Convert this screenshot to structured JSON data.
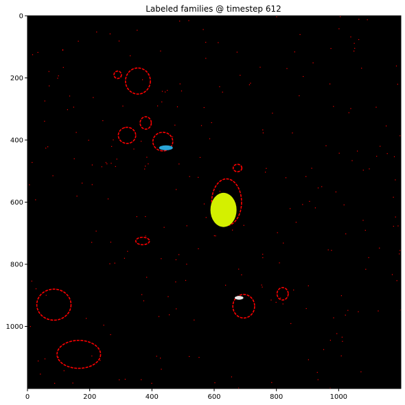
{
  "chart_data": {
    "type": "heatmap",
    "title": "Labeled families @ timestep 612",
    "xlabel": "",
    "ylabel": "",
    "xlim": [
      0,
      1200
    ],
    "ylim": [
      1200,
      0
    ],
    "x_ticks": [
      0,
      200,
      400,
      600,
      800,
      1000
    ],
    "y_ticks": [
      0,
      200,
      400,
      600,
      800,
      1000
    ],
    "grid": false,
    "background_color": "#000000",
    "colors": {
      "ring": "#ff0000",
      "family_yellow": "#d4f000",
      "family_blue": "#2aa6d8",
      "family_white": "#e8e8e8"
    },
    "rings": [
      {
        "cx": 355,
        "cy": 210,
        "rx": 40,
        "ry": 42
      },
      {
        "cx": 290,
        "cy": 190,
        "rx": 12,
        "ry": 12
      },
      {
        "cx": 320,
        "cy": 385,
        "rx": 28,
        "ry": 26
      },
      {
        "cx": 380,
        "cy": 345,
        "rx": 18,
        "ry": 20
      },
      {
        "cx": 435,
        "cy": 405,
        "rx": 32,
        "ry": 30
      },
      {
        "cx": 640,
        "cy": 600,
        "rx": 48,
        "ry": 75
      },
      {
        "cx": 675,
        "cy": 490,
        "rx": 14,
        "ry": 12
      },
      {
        "cx": 370,
        "cy": 725,
        "rx": 22,
        "ry": 12
      },
      {
        "cx": 85,
        "cy": 930,
        "rx": 55,
        "ry": 50
      },
      {
        "cx": 695,
        "cy": 935,
        "rx": 35,
        "ry": 38
      },
      {
        "cx": 820,
        "cy": 895,
        "rx": 18,
        "ry": 20
      },
      {
        "cx": 165,
        "cy": 1090,
        "rx": 70,
        "ry": 45
      }
    ],
    "families": [
      {
        "color": "family_yellow",
        "cx": 630,
        "cy": 625,
        "rx": 42,
        "ry": 55
      },
      {
        "color": "family_blue",
        "cx": 445,
        "cy": 425,
        "rx": 22,
        "ry": 8
      },
      {
        "color": "family_white",
        "cx": 680,
        "cy": 908,
        "rx": 14,
        "ry": 6
      }
    ]
  }
}
